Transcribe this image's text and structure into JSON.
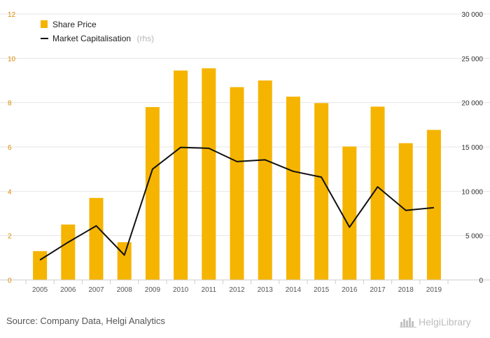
{
  "chart_data": {
    "type": "bar",
    "categories": [
      "2005",
      "2006",
      "2007",
      "2008",
      "2009",
      "2010",
      "2011",
      "2012",
      "2013",
      "2014",
      "2015",
      "2016",
      "2017",
      "2018",
      "2019"
    ],
    "series": [
      {
        "name": "Share Price",
        "type": "bar",
        "axis": "left",
        "color": "#f5b400",
        "values": [
          1.3,
          2.5,
          3.7,
          1.7,
          7.8,
          9.45,
          9.55,
          8.7,
          9.0,
          8.27,
          7.98,
          6.02,
          7.82,
          6.17,
          6.77
        ]
      },
      {
        "name": "Market Capitalisation",
        "type": "line",
        "axis": "right",
        "color": "#111111",
        "values": [
          2250,
          4250,
          6100,
          2800,
          12500,
          14950,
          14850,
          13350,
          13550,
          12250,
          11600,
          5950,
          10500,
          7850,
          8150
        ]
      }
    ],
    "legend": {
      "position": "top-left",
      "items": [
        {
          "label": "Share Price",
          "note": ""
        },
        {
          "label": "Market Capitalisation",
          "note": "(rhs)"
        }
      ]
    },
    "yleft": {
      "min": 0,
      "max": 12,
      "ticks": [
        "0",
        "2",
        "4",
        "6",
        "8",
        "10",
        "12"
      ]
    },
    "yright": {
      "min": 0,
      "max": 30000,
      "ticks": [
        "0",
        "5 000",
        "10 000",
        "15 000",
        "20 000",
        "25 000",
        "30 000"
      ]
    },
    "grid": true
  },
  "footer": {
    "source": "Source: Company Data, Helgi Analytics",
    "logo_text": "HelgiLibrary"
  }
}
